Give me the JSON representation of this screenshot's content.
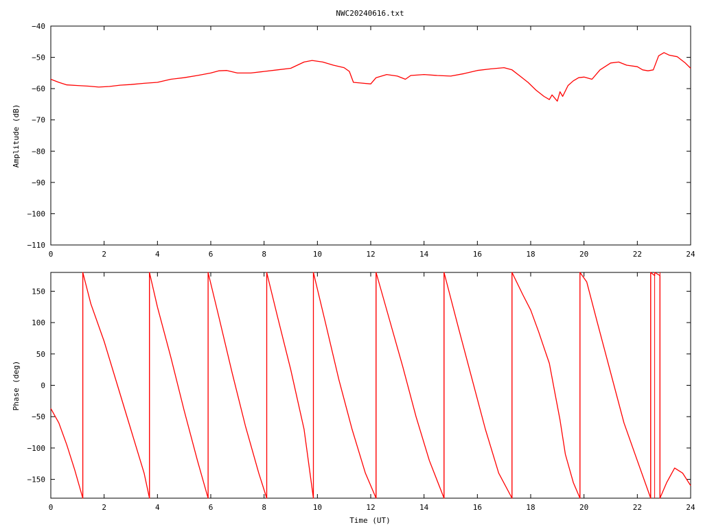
{
  "title": "NWC20240616.txt",
  "chart_data": [
    {
      "type": "line",
      "ylabel": "Amplitude (dB)",
      "xlabel": "",
      "xlim": [
        0,
        24
      ],
      "ylim": [
        -110,
        -40
      ],
      "x_ticks": [
        0,
        2,
        4,
        6,
        8,
        10,
        12,
        14,
        16,
        18,
        20,
        22,
        24
      ],
      "y_ticks": [
        -110,
        -100,
        -90,
        -80,
        -70,
        -60,
        -50,
        -40
      ],
      "grid": false,
      "color": "#ff0000",
      "series": [
        {
          "x": [
            0,
            0.3,
            0.6,
            1.0,
            1.4,
            1.8,
            2.2,
            2.6,
            3.0,
            3.5,
            4.0,
            4.5,
            5.0,
            5.5,
            6.0,
            6.3,
            6.6,
            7.0,
            7.5,
            8.0,
            8.5,
            9.0,
            9.5,
            9.8,
            10.2,
            10.6,
            11.0,
            11.2,
            11.35,
            11.6,
            12.0,
            12.2,
            12.6,
            13.0,
            13.3,
            13.5,
            14.0,
            14.5,
            15.0,
            15.5,
            16.0,
            16.5,
            17.0,
            17.3,
            17.6,
            17.9,
            18.2,
            18.5,
            18.7,
            18.8,
            19.0,
            19.1,
            19.2,
            19.4,
            19.6,
            19.8,
            20.0,
            20.3,
            20.6,
            21.0,
            21.3,
            21.6,
            22.0,
            22.2,
            22.4,
            22.6,
            22.8,
            23.0,
            23.2,
            23.5,
            23.8,
            24.0
          ],
          "y": [
            -57.0,
            -58.0,
            -58.8,
            -59.0,
            -59.2,
            -59.5,
            -59.3,
            -58.9,
            -58.7,
            -58.3,
            -58.0,
            -57.0,
            -56.5,
            -55.8,
            -55.0,
            -54.3,
            -54.2,
            -55.0,
            -55.0,
            -54.5,
            -54.0,
            -53.5,
            -51.5,
            -51.0,
            -51.5,
            -52.5,
            -53.3,
            -54.5,
            -58.0,
            -58.2,
            -58.5,
            -56.5,
            -55.5,
            -56.0,
            -57.0,
            -55.8,
            -55.5,
            -55.8,
            -56.0,
            -55.2,
            -54.2,
            -53.7,
            -53.3,
            -54.0,
            -56.0,
            -58.0,
            -60.5,
            -62.5,
            -63.5,
            -62.0,
            -64.0,
            -61.0,
            -62.5,
            -59.0,
            -57.5,
            -56.5,
            -56.3,
            -57.0,
            -54.0,
            -51.8,
            -51.5,
            -52.5,
            -53.0,
            -54.0,
            -54.3,
            -54.0,
            -49.5,
            -48.5,
            -49.3,
            -49.8,
            -51.8,
            -53.5
          ]
        }
      ]
    },
    {
      "type": "line",
      "ylabel": "Phase (deg)",
      "xlabel": "Time (UT)",
      "xlim": [
        0,
        24
      ],
      "ylim": [
        -180,
        180
      ],
      "x_ticks": [
        0,
        2,
        4,
        6,
        8,
        10,
        12,
        14,
        16,
        18,
        20,
        22,
        24
      ],
      "y_ticks": [
        -150,
        -100,
        -50,
        0,
        50,
        100,
        150
      ],
      "grid": false,
      "color": "#ff0000",
      "wraps_at_x": [
        1.2,
        3.7,
        5.9,
        8.1,
        9.85,
        12.2,
        14.75,
        17.3,
        19.85,
        22.5,
        22.65,
        22.85
      ],
      "series": [
        {
          "x": [
            0,
            0.3,
            0.6,
            0.9,
            1.2,
            1.2,
            1.5,
            2.0,
            2.5,
            3.0,
            3.5,
            3.7,
            3.7,
            4.0,
            4.5,
            5.0,
            5.5,
            5.9,
            5.9,
            6.3,
            6.8,
            7.3,
            7.8,
            8.1,
            8.1,
            8.5,
            9.0,
            9.5,
            9.85,
            9.85,
            10.3,
            10.8,
            11.3,
            11.8,
            12.2,
            12.2,
            12.7,
            13.2,
            13.7,
            14.2,
            14.75,
            14.75,
            15.3,
            15.8,
            16.3,
            16.8,
            17.3,
            17.3,
            17.7,
            18.0,
            18.3,
            18.5,
            18.7,
            18.9,
            19.1,
            19.3,
            19.6,
            19.85,
            19.85,
            20.1,
            20.5,
            21.0,
            21.5,
            22.0,
            22.5,
            22.5,
            22.65,
            22.65,
            22.85,
            22.85,
            23.1,
            23.4,
            23.7,
            24.0
          ],
          "y": [
            -37,
            -60,
            -95,
            -135,
            -180,
            180,
            130,
            70,
            0,
            -70,
            -140,
            -180,
            180,
            125,
            45,
            -40,
            -120,
            -180,
            180,
            110,
            20,
            -65,
            -140,
            -180,
            180,
            110,
            25,
            -70,
            -180,
            180,
            100,
            10,
            -70,
            -140,
            -180,
            180,
            105,
            30,
            -50,
            -120,
            -180,
            180,
            90,
            10,
            -70,
            -140,
            -180,
            180,
            145,
            120,
            85,
            60,
            35,
            -10,
            -55,
            -110,
            -155,
            -180,
            180,
            165,
            100,
            20,
            -60,
            -120,
            -180,
            180,
            175,
            180,
            175,
            -180,
            -155,
            -132,
            -140,
            -160
          ]
        }
      ]
    }
  ]
}
